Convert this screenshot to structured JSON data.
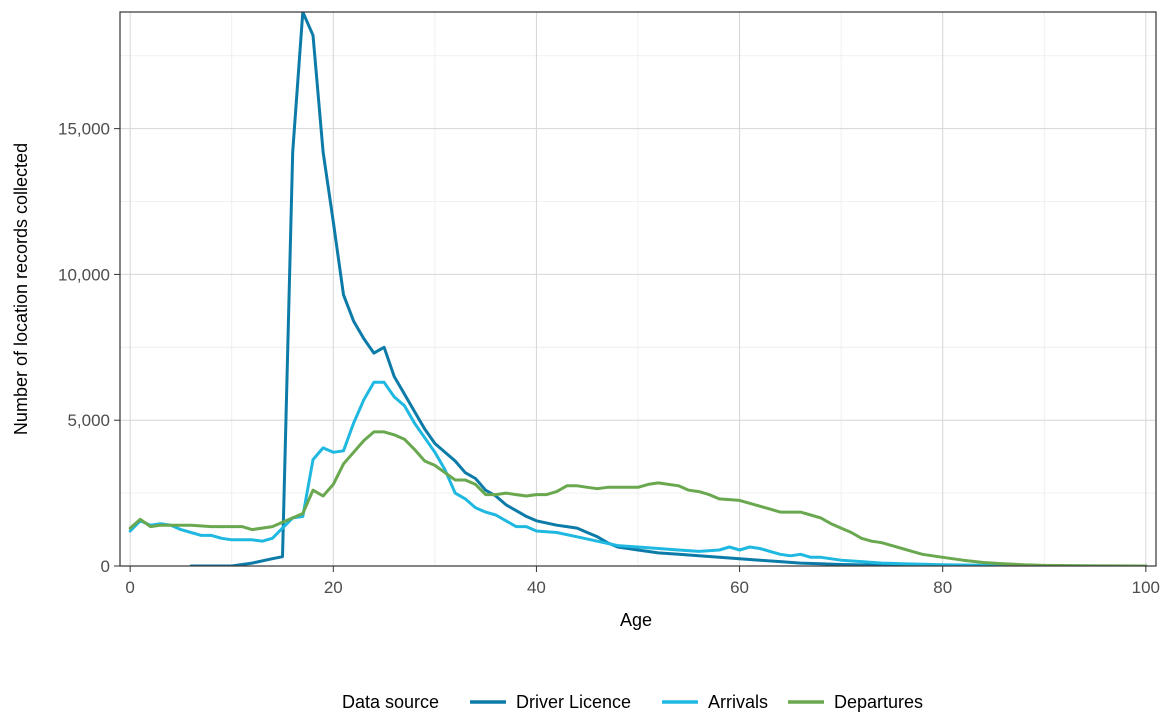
{
  "chart_data": {
    "type": "line",
    "xlabel": "Age",
    "ylabel": "Number of location records collected",
    "xlim": [
      -1,
      101
    ],
    "ylim": [
      0,
      19000
    ],
    "x_ticks": [
      0,
      20,
      40,
      60,
      80,
      100
    ],
    "x_tick_labels": [
      "0",
      "20",
      "40",
      "60",
      "80",
      "100"
    ],
    "y_ticks": [
      0,
      5000,
      10000,
      15000
    ],
    "y_tick_labels": [
      "0",
      "5,000",
      "10,000",
      "15,000"
    ],
    "grid": true,
    "legend_position": "bottom",
    "legend_title": "Data source",
    "series": [
      {
        "name": "Driver Licence",
        "color": "#0C7BA8",
        "points": [
          [
            6,
            0
          ],
          [
            10,
            0
          ],
          [
            12,
            100
          ],
          [
            14,
            250
          ],
          [
            15,
            320
          ],
          [
            16,
            14200
          ],
          [
            17,
            19000
          ],
          [
            18,
            18200
          ],
          [
            19,
            14200
          ],
          [
            20,
            11800
          ],
          [
            21,
            9300
          ],
          [
            22,
            8400
          ],
          [
            23,
            7800
          ],
          [
            24,
            7300
          ],
          [
            25,
            7500
          ],
          [
            26,
            6500
          ],
          [
            27,
            5900
          ],
          [
            28,
            5300
          ],
          [
            29,
            4700
          ],
          [
            30,
            4200
          ],
          [
            31,
            3900
          ],
          [
            32,
            3600
          ],
          [
            33,
            3200
          ],
          [
            34,
            3000
          ],
          [
            35,
            2600
          ],
          [
            36,
            2400
          ],
          [
            37,
            2100
          ],
          [
            38,
            1900
          ],
          [
            39,
            1700
          ],
          [
            40,
            1550
          ],
          [
            42,
            1400
          ],
          [
            43,
            1350
          ],
          [
            44,
            1300
          ],
          [
            45,
            1150
          ],
          [
            46,
            1000
          ],
          [
            47,
            800
          ],
          [
            48,
            650
          ],
          [
            50,
            550
          ],
          [
            52,
            450
          ],
          [
            54,
            400
          ],
          [
            56,
            350
          ],
          [
            58,
            300
          ],
          [
            60,
            250
          ],
          [
            62,
            200
          ],
          [
            64,
            150
          ],
          [
            66,
            100
          ],
          [
            68,
            80
          ],
          [
            70,
            50
          ],
          [
            75,
            20
          ],
          [
            80,
            10
          ],
          [
            90,
            0
          ],
          [
            100,
            0
          ]
        ]
      },
      {
        "name": "Arrivals",
        "color": "#1FB8E0",
        "points": [
          [
            0,
            1200
          ],
          [
            1,
            1550
          ],
          [
            2,
            1400
          ],
          [
            3,
            1450
          ],
          [
            4,
            1400
          ],
          [
            5,
            1250
          ],
          [
            6,
            1150
          ],
          [
            7,
            1050
          ],
          [
            8,
            1050
          ],
          [
            9,
            950
          ],
          [
            10,
            900
          ],
          [
            12,
            900
          ],
          [
            13,
            850
          ],
          [
            14,
            950
          ],
          [
            15,
            1300
          ],
          [
            16,
            1650
          ],
          [
            17,
            1700
          ],
          [
            18,
            3650
          ],
          [
            19,
            4050
          ],
          [
            20,
            3900
          ],
          [
            21,
            3950
          ],
          [
            22,
            4900
          ],
          [
            23,
            5700
          ],
          [
            24,
            6300
          ],
          [
            25,
            6300
          ],
          [
            26,
            5800
          ],
          [
            27,
            5500
          ],
          [
            28,
            4900
          ],
          [
            29,
            4400
          ],
          [
            30,
            3900
          ],
          [
            31,
            3300
          ],
          [
            32,
            2500
          ],
          [
            33,
            2300
          ],
          [
            34,
            2000
          ],
          [
            35,
            1850
          ],
          [
            36,
            1750
          ],
          [
            37,
            1550
          ],
          [
            38,
            1350
          ],
          [
            39,
            1350
          ],
          [
            40,
            1200
          ],
          [
            42,
            1150
          ],
          [
            44,
            1000
          ],
          [
            46,
            850
          ],
          [
            48,
            700
          ],
          [
            50,
            650
          ],
          [
            52,
            600
          ],
          [
            54,
            550
          ],
          [
            56,
            500
          ],
          [
            58,
            550
          ],
          [
            59,
            650
          ],
          [
            60,
            550
          ],
          [
            61,
            650
          ],
          [
            62,
            600
          ],
          [
            63,
            500
          ],
          [
            64,
            400
          ],
          [
            65,
            350
          ],
          [
            66,
            400
          ],
          [
            67,
            300
          ],
          [
            68,
            300
          ],
          [
            70,
            200
          ],
          [
            72,
            150
          ],
          [
            74,
            100
          ],
          [
            76,
            80
          ],
          [
            78,
            60
          ],
          [
            80,
            40
          ],
          [
            85,
            20
          ],
          [
            90,
            5
          ],
          [
            100,
            0
          ]
        ]
      },
      {
        "name": "Departures",
        "color": "#6AA84F",
        "points": [
          [
            0,
            1300
          ],
          [
            1,
            1600
          ],
          [
            2,
            1350
          ],
          [
            3,
            1400
          ],
          [
            4,
            1400
          ],
          [
            6,
            1400
          ],
          [
            8,
            1350
          ],
          [
            10,
            1350
          ],
          [
            11,
            1350
          ],
          [
            12,
            1250
          ],
          [
            14,
            1350
          ],
          [
            15,
            1500
          ],
          [
            16,
            1650
          ],
          [
            17,
            1800
          ],
          [
            18,
            2600
          ],
          [
            19,
            2400
          ],
          [
            20,
            2800
          ],
          [
            21,
            3500
          ],
          [
            22,
            3900
          ],
          [
            23,
            4300
          ],
          [
            24,
            4600
          ],
          [
            25,
            4600
          ],
          [
            26,
            4500
          ],
          [
            27,
            4350
          ],
          [
            28,
            4000
          ],
          [
            29,
            3600
          ],
          [
            30,
            3450
          ],
          [
            31,
            3200
          ],
          [
            32,
            2950
          ],
          [
            33,
            2950
          ],
          [
            34,
            2800
          ],
          [
            35,
            2450
          ],
          [
            36,
            2450
          ],
          [
            37,
            2500
          ],
          [
            38,
            2450
          ],
          [
            39,
            2400
          ],
          [
            40,
            2450
          ],
          [
            41,
            2450
          ],
          [
            42,
            2550
          ],
          [
            43,
            2750
          ],
          [
            44,
            2750
          ],
          [
            45,
            2700
          ],
          [
            46,
            2650
          ],
          [
            47,
            2700
          ],
          [
            48,
            2700
          ],
          [
            50,
            2700
          ],
          [
            51,
            2800
          ],
          [
            52,
            2850
          ],
          [
            53,
            2800
          ],
          [
            54,
            2750
          ],
          [
            55,
            2600
          ],
          [
            56,
            2550
          ],
          [
            57,
            2450
          ],
          [
            58,
            2300
          ],
          [
            60,
            2250
          ],
          [
            61,
            2150
          ],
          [
            62,
            2050
          ],
          [
            63,
            1950
          ],
          [
            64,
            1850
          ],
          [
            66,
            1850
          ],
          [
            67,
            1750
          ],
          [
            68,
            1650
          ],
          [
            69,
            1450
          ],
          [
            70,
            1300
          ],
          [
            71,
            1150
          ],
          [
            72,
            950
          ],
          [
            73,
            850
          ],
          [
            74,
            800
          ],
          [
            75,
            700
          ],
          [
            76,
            600
          ],
          [
            77,
            500
          ],
          [
            78,
            400
          ],
          [
            80,
            300
          ],
          [
            82,
            200
          ],
          [
            84,
            120
          ],
          [
            86,
            80
          ],
          [
            88,
            40
          ],
          [
            90,
            20
          ],
          [
            95,
            5
          ],
          [
            100,
            0
          ]
        ]
      }
    ]
  }
}
